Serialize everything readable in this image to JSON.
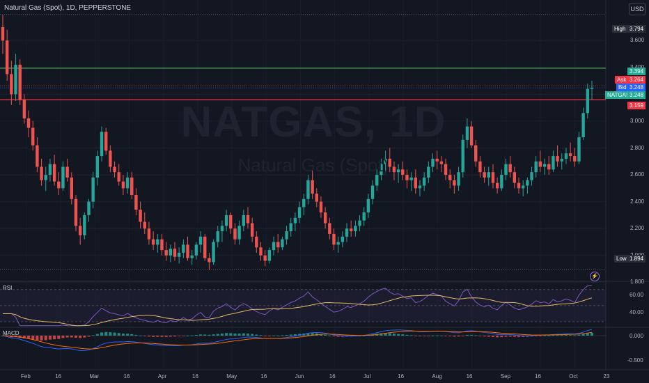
{
  "header": {
    "title": "Natural Gas (Spot), 1D, PEPPERSTONE",
    "currency": "USD"
  },
  "watermark": {
    "symbol": "NATGAS, 1D",
    "name": "Natural Gas (Spot)"
  },
  "price_axis_labels": [
    "3.600",
    "3.400",
    "3.200",
    "3.000",
    "2.800",
    "2.600",
    "2.400",
    "2.200",
    "2.000",
    "1.800"
  ],
  "badges": {
    "high_label": "High",
    "high_value": "3.794",
    "green_value": "3.394",
    "ask_label": "Ask",
    "ask_value": "3.264",
    "bid_label": "Bid",
    "bid_value": "3.248",
    "natgas_label": "NATGAS",
    "natgas_value": "3.248",
    "red_value": "3.159",
    "low_label": "Low",
    "low_value": "1.894"
  },
  "rsi": {
    "label": "RSI",
    "axis_labels": [
      "60.00",
      "40.00"
    ]
  },
  "macd": {
    "label": "MACD",
    "axis_labels": [
      "0.000",
      "-0.500"
    ]
  },
  "time_axis": [
    "Feb",
    "16",
    "Mar",
    "16",
    "Apr",
    "16",
    "May",
    "16",
    "Jun",
    "16",
    "Jul",
    "16",
    "Aug",
    "16",
    "Sep",
    "16",
    "Oct",
    "23"
  ],
  "colors": {
    "up": "#26a69a",
    "down": "#ef5350",
    "background": "#131722",
    "rsi": "#7e57c2",
    "rsi_ma": "#e6b96a"
  },
  "chart_data": {
    "type": "candlestick",
    "candles": [
      [
        3.7,
        3.79,
        3.5,
        3.6
      ],
      [
        3.6,
        3.68,
        3.3,
        3.35
      ],
      [
        3.35,
        3.45,
        3.12,
        3.2
      ],
      [
        3.2,
        3.5,
        3.15,
        3.42
      ],
      [
        3.42,
        3.46,
        3.12,
        3.16
      ],
      [
        3.16,
        3.2,
        2.98,
        3.02
      ],
      [
        3.02,
        3.08,
        2.88,
        2.95
      ],
      [
        2.95,
        3.0,
        2.78,
        2.82
      ],
      [
        2.82,
        2.88,
        2.62,
        2.66
      ],
      [
        2.66,
        2.72,
        2.52,
        2.56
      ],
      [
        2.56,
        2.66,
        2.48,
        2.6
      ],
      [
        2.6,
        2.72,
        2.55,
        2.68
      ],
      [
        2.68,
        2.75,
        2.52,
        2.55
      ],
      [
        2.55,
        2.62,
        2.45,
        2.5
      ],
      [
        2.5,
        2.7,
        2.48,
        2.66
      ],
      [
        2.66,
        2.72,
        2.55,
        2.58
      ],
      [
        2.58,
        2.62,
        2.38,
        2.42
      ],
      [
        2.42,
        2.45,
        2.18,
        2.22
      ],
      [
        2.22,
        2.28,
        2.08,
        2.15
      ],
      [
        2.15,
        2.32,
        2.12,
        2.3
      ],
      [
        2.3,
        2.42,
        2.25,
        2.4
      ],
      [
        2.4,
        2.62,
        2.35,
        2.58
      ],
      [
        2.58,
        2.78,
        2.52,
        2.74
      ],
      [
        2.74,
        2.96,
        2.7,
        2.92
      ],
      [
        2.92,
        2.95,
        2.75,
        2.78
      ],
      [
        2.78,
        2.82,
        2.62,
        2.66
      ],
      [
        2.66,
        2.7,
        2.58,
        2.62
      ],
      [
        2.62,
        2.68,
        2.52,
        2.55
      ],
      [
        2.55,
        2.6,
        2.45,
        2.5
      ],
      [
        2.5,
        2.62,
        2.46,
        2.58
      ],
      [
        2.58,
        2.62,
        2.42,
        2.45
      ],
      [
        2.45,
        2.5,
        2.3,
        2.34
      ],
      [
        2.34,
        2.4,
        2.2,
        2.25
      ],
      [
        2.25,
        2.32,
        2.16,
        2.2
      ],
      [
        2.2,
        2.25,
        2.08,
        2.12
      ],
      [
        2.12,
        2.18,
        2.04,
        2.08
      ],
      [
        2.08,
        2.16,
        2.02,
        2.12
      ],
      [
        2.12,
        2.16,
        2.0,
        2.04
      ],
      [
        2.04,
        2.1,
        1.96,
        2.0
      ],
      [
        2.0,
        2.08,
        1.95,
        2.05
      ],
      [
        2.05,
        2.1,
        1.96,
        1.99
      ],
      [
        1.99,
        2.06,
        1.94,
        2.02
      ],
      [
        2.02,
        2.12,
        1.98,
        2.08
      ],
      [
        2.08,
        2.14,
        1.96,
        1.98
      ],
      [
        1.98,
        2.04,
        1.93,
        2.0
      ],
      [
        2.0,
        2.1,
        1.97,
        2.08
      ],
      [
        2.08,
        2.18,
        2.02,
        2.14
      ],
      [
        2.14,
        2.16,
        1.96,
        1.98
      ],
      [
        1.98,
        2.02,
        1.89,
        1.95
      ],
      [
        1.95,
        2.12,
        1.93,
        2.1
      ],
      [
        2.1,
        2.22,
        2.06,
        2.18
      ],
      [
        2.18,
        2.26,
        2.1,
        2.22
      ],
      [
        2.22,
        2.34,
        2.18,
        2.3
      ],
      [
        2.3,
        2.32,
        2.16,
        2.2
      ],
      [
        2.2,
        2.24,
        2.08,
        2.12
      ],
      [
        2.12,
        2.26,
        2.08,
        2.22
      ],
      [
        2.22,
        2.34,
        2.18,
        2.3
      ],
      [
        2.3,
        2.36,
        2.2,
        2.24
      ],
      [
        2.24,
        2.28,
        2.1,
        2.14
      ],
      [
        2.14,
        2.18,
        2.02,
        2.06
      ],
      [
        2.06,
        2.1,
        1.96,
        2.0
      ],
      [
        2.0,
        2.04,
        1.92,
        1.96
      ],
      [
        1.96,
        2.06,
        1.94,
        2.04
      ],
      [
        2.04,
        2.14,
        2.0,
        2.1
      ],
      [
        2.1,
        2.16,
        2.02,
        2.06
      ],
      [
        2.06,
        2.14,
        2.04,
        2.12
      ],
      [
        2.12,
        2.22,
        2.08,
        2.18
      ],
      [
        2.18,
        2.28,
        2.14,
        2.24
      ],
      [
        2.24,
        2.32,
        2.18,
        2.28
      ],
      [
        2.28,
        2.4,
        2.24,
        2.36
      ],
      [
        2.36,
        2.46,
        2.3,
        2.42
      ],
      [
        2.42,
        2.6,
        2.38,
        2.56
      ],
      [
        2.56,
        2.64,
        2.42,
        2.46
      ],
      [
        2.46,
        2.5,
        2.36,
        2.4
      ],
      [
        2.4,
        2.44,
        2.28,
        2.32
      ],
      [
        2.32,
        2.36,
        2.2,
        2.24
      ],
      [
        2.24,
        2.28,
        2.12,
        2.16
      ],
      [
        2.16,
        2.2,
        2.04,
        2.08
      ],
      [
        2.08,
        2.14,
        2.02,
        2.1
      ],
      [
        2.1,
        2.18,
        2.06,
        2.14
      ],
      [
        2.14,
        2.24,
        2.1,
        2.2
      ],
      [
        2.2,
        2.26,
        2.14,
        2.18
      ],
      [
        2.18,
        2.26,
        2.14,
        2.22
      ],
      [
        2.22,
        2.3,
        2.18,
        2.26
      ],
      [
        2.26,
        2.36,
        2.22,
        2.32
      ],
      [
        2.32,
        2.46,
        2.28,
        2.42
      ],
      [
        2.42,
        2.56,
        2.38,
        2.52
      ],
      [
        2.52,
        2.64,
        2.48,
        2.6
      ],
      [
        2.6,
        2.72,
        2.56,
        2.68
      ],
      [
        2.68,
        2.78,
        2.62,
        2.72
      ],
      [
        2.72,
        2.8,
        2.62,
        2.66
      ],
      [
        2.66,
        2.7,
        2.56,
        2.62
      ],
      [
        2.62,
        2.68,
        2.54,
        2.64
      ],
      [
        2.64,
        2.7,
        2.56,
        2.6
      ],
      [
        2.6,
        2.64,
        2.5,
        2.56
      ],
      [
        2.56,
        2.62,
        2.48,
        2.58
      ],
      [
        2.58,
        2.64,
        2.46,
        2.5
      ],
      [
        2.5,
        2.56,
        2.44,
        2.52
      ],
      [
        2.52,
        2.62,
        2.48,
        2.58
      ],
      [
        2.58,
        2.7,
        2.54,
        2.66
      ],
      [
        2.66,
        2.76,
        2.62,
        2.72
      ],
      [
        2.72,
        2.78,
        2.64,
        2.7
      ],
      [
        2.7,
        2.74,
        2.62,
        2.68
      ],
      [
        2.68,
        2.72,
        2.56,
        2.6
      ],
      [
        2.6,
        2.64,
        2.5,
        2.56
      ],
      [
        2.56,
        2.6,
        2.46,
        2.52
      ],
      [
        2.52,
        2.66,
        2.48,
        2.62
      ],
      [
        2.62,
        2.9,
        2.58,
        2.86
      ],
      [
        2.86,
        3.02,
        2.8,
        2.96
      ],
      [
        2.96,
        3.0,
        2.8,
        2.82
      ],
      [
        2.82,
        2.86,
        2.66,
        2.7
      ],
      [
        2.7,
        2.74,
        2.58,
        2.62
      ],
      [
        2.62,
        2.66,
        2.54,
        2.58
      ],
      [
        2.58,
        2.66,
        2.52,
        2.62
      ],
      [
        2.62,
        2.68,
        2.5,
        2.54
      ],
      [
        2.54,
        2.58,
        2.46,
        2.5
      ],
      [
        2.5,
        2.64,
        2.48,
        2.6
      ],
      [
        2.6,
        2.72,
        2.56,
        2.68
      ],
      [
        2.68,
        2.74,
        2.58,
        2.62
      ],
      [
        2.62,
        2.66,
        2.5,
        2.54
      ],
      [
        2.54,
        2.58,
        2.46,
        2.5
      ],
      [
        2.5,
        2.56,
        2.44,
        2.52
      ],
      [
        2.52,
        2.58,
        2.46,
        2.56
      ],
      [
        2.56,
        2.66,
        2.52,
        2.62
      ],
      [
        2.62,
        2.74,
        2.58,
        2.7
      ],
      [
        2.7,
        2.78,
        2.62,
        2.66
      ],
      [
        2.66,
        2.72,
        2.6,
        2.68
      ],
      [
        2.68,
        2.74,
        2.6,
        2.64
      ],
      [
        2.64,
        2.78,
        2.62,
        2.74
      ],
      [
        2.74,
        2.82,
        2.66,
        2.7
      ],
      [
        2.7,
        2.76,
        2.64,
        2.72
      ],
      [
        2.72,
        2.8,
        2.68,
        2.76
      ],
      [
        2.76,
        2.84,
        2.7,
        2.74
      ],
      [
        2.74,
        2.8,
        2.66,
        2.7
      ],
      [
        2.7,
        2.92,
        2.68,
        2.88
      ],
      [
        2.88,
        3.1,
        2.86,
        3.06
      ],
      [
        3.06,
        3.28,
        3.02,
        3.24
      ],
      [
        3.24,
        3.3,
        3.16,
        3.248
      ]
    ],
    "rsi": {
      "axis": [
        60,
        40
      ]
    },
    "macd": {
      "axis": [
        0.0,
        -0.5
      ]
    },
    "horizontal_levels": {
      "high": 3.794,
      "green": 3.394,
      "ask": 3.264,
      "bid": 3.248,
      "red": 3.159,
      "low": 1.894
    }
  }
}
